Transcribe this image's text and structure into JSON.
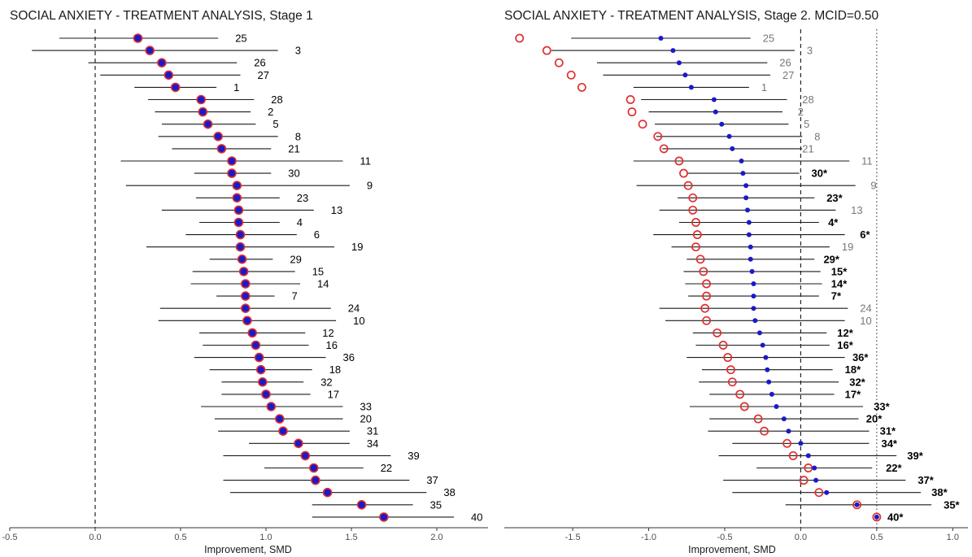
{
  "chart_data": [
    {
      "type": "forest",
      "title": "SOCIAL ANXIETY - TREATMENT ANALYSIS, Stage 1",
      "xlabel": "Improvement, SMD",
      "xlim": [
        -0.5,
        2.3
      ],
      "xticks": [
        "-0.5",
        "0.0",
        "0.5",
        "1.0",
        "1.5",
        "2.0"
      ],
      "reference_line": 0.0,
      "studies": [
        {
          "label": "25",
          "est": 0.25,
          "lo": -0.21,
          "hi": 0.72,
          "label_x": 0.82
        },
        {
          "label": "3",
          "est": 0.32,
          "lo": -0.37,
          "hi": 1.07,
          "label_x": 1.17
        },
        {
          "label": "26",
          "est": 0.39,
          "lo": -0.04,
          "hi": 0.83,
          "label_x": 0.93
        },
        {
          "label": "27",
          "est": 0.43,
          "lo": 0.03,
          "hi": 0.85,
          "label_x": 0.95
        },
        {
          "label": "1",
          "est": 0.47,
          "lo": 0.23,
          "hi": 0.71,
          "label_x": 0.81
        },
        {
          "label": "28",
          "est": 0.62,
          "lo": 0.31,
          "hi": 0.93,
          "label_x": 1.03
        },
        {
          "label": "2",
          "est": 0.63,
          "lo": 0.35,
          "hi": 0.91,
          "label_x": 1.01
        },
        {
          "label": "5",
          "est": 0.66,
          "lo": 0.39,
          "hi": 0.94,
          "label_x": 1.04
        },
        {
          "label": "8",
          "est": 0.72,
          "lo": 0.37,
          "hi": 1.07,
          "label_x": 1.17
        },
        {
          "label": "21",
          "est": 0.74,
          "lo": 0.45,
          "hi": 1.03,
          "label_x": 1.13
        },
        {
          "label": "11",
          "est": 0.8,
          "lo": 0.15,
          "hi": 1.45,
          "label_x": 1.55
        },
        {
          "label": "30",
          "est": 0.8,
          "lo": 0.58,
          "hi": 1.03,
          "label_x": 1.13
        },
        {
          "label": "9",
          "est": 0.83,
          "lo": 0.18,
          "hi": 1.49,
          "label_x": 1.59
        },
        {
          "label": "23",
          "est": 0.83,
          "lo": 0.59,
          "hi": 1.08,
          "label_x": 1.18
        },
        {
          "label": "13",
          "est": 0.84,
          "lo": 0.39,
          "hi": 1.28,
          "label_x": 1.38
        },
        {
          "label": "4",
          "est": 0.84,
          "lo": 0.61,
          "hi": 1.08,
          "label_x": 1.18
        },
        {
          "label": "6",
          "est": 0.85,
          "lo": 0.53,
          "hi": 1.18,
          "label_x": 1.28
        },
        {
          "label": "19",
          "est": 0.85,
          "lo": 0.3,
          "hi": 1.4,
          "label_x": 1.5
        },
        {
          "label": "29",
          "est": 0.86,
          "lo": 0.67,
          "hi": 1.04,
          "label_x": 1.14
        },
        {
          "label": "15",
          "est": 0.87,
          "lo": 0.57,
          "hi": 1.17,
          "label_x": 1.27
        },
        {
          "label": "14",
          "est": 0.88,
          "lo": 0.56,
          "hi": 1.2,
          "label_x": 1.3
        },
        {
          "label": "7",
          "est": 0.88,
          "lo": 0.71,
          "hi": 1.05,
          "label_x": 1.15
        },
        {
          "label": "24",
          "est": 0.88,
          "lo": 0.38,
          "hi": 1.38,
          "label_x": 1.48
        },
        {
          "label": "10",
          "est": 0.89,
          "lo": 0.37,
          "hi": 1.41,
          "label_x": 1.51
        },
        {
          "label": "12",
          "est": 0.92,
          "lo": 0.61,
          "hi": 1.23,
          "label_x": 1.33
        },
        {
          "label": "16",
          "est": 0.94,
          "lo": 0.63,
          "hi": 1.25,
          "label_x": 1.35
        },
        {
          "label": "36",
          "est": 0.96,
          "lo": 0.58,
          "hi": 1.35,
          "label_x": 1.45
        },
        {
          "label": "18",
          "est": 0.97,
          "lo": 0.67,
          "hi": 1.27,
          "label_x": 1.37
        },
        {
          "label": "32",
          "est": 0.98,
          "lo": 0.74,
          "hi": 1.22,
          "label_x": 1.32
        },
        {
          "label": "17",
          "est": 1.0,
          "lo": 0.74,
          "hi": 1.26,
          "label_x": 1.36
        },
        {
          "label": "33",
          "est": 1.03,
          "lo": 0.62,
          "hi": 1.45,
          "label_x": 1.55
        },
        {
          "label": "20",
          "est": 1.08,
          "lo": 0.7,
          "hi": 1.45,
          "label_x": 1.55
        },
        {
          "label": "31",
          "est": 1.1,
          "lo": 0.72,
          "hi": 1.49,
          "label_x": 1.59
        },
        {
          "label": "34",
          "est": 1.19,
          "lo": 0.9,
          "hi": 1.49,
          "label_x": 1.59
        },
        {
          "label": "39",
          "est": 1.23,
          "lo": 0.75,
          "hi": 1.73,
          "label_x": 1.83
        },
        {
          "label": "22",
          "est": 1.28,
          "lo": 0.99,
          "hi": 1.57,
          "label_x": 1.67
        },
        {
          "label": "37",
          "est": 1.29,
          "lo": 0.75,
          "hi": 1.84,
          "label_x": 1.94
        },
        {
          "label": "38",
          "est": 1.36,
          "lo": 0.79,
          "hi": 1.94,
          "label_x": 2.04
        },
        {
          "label": "35",
          "est": 1.56,
          "lo": 1.27,
          "hi": 1.86,
          "label_x": 1.96
        },
        {
          "label": "40",
          "est": 1.69,
          "lo": 1.27,
          "hi": 2.1,
          "label_x": 2.2
        }
      ]
    },
    {
      "type": "forest",
      "title": "SOCIAL ANXIETY - TREATMENT ANALYSIS, Stage 2. MCID=0.50",
      "xlabel": "Improvement, SMD",
      "xlim": [
        -1.95,
        1.1
      ],
      "xticks": [
        "-1.5",
        "-1.0",
        "-0.5",
        "0.0",
        "0.5",
        "1.0"
      ],
      "reference_line": 0.0,
      "mcid_line": 0.5,
      "studies": [
        {
          "label": "25",
          "est": -0.92,
          "lo": -1.51,
          "hi": -0.33,
          "naive": -1.85,
          "label_x": -0.25,
          "significant": false
        },
        {
          "label": "3",
          "est": -0.84,
          "lo": -1.64,
          "hi": -0.04,
          "naive": -1.67,
          "label_x": 0.04,
          "significant": false
        },
        {
          "label": "26",
          "est": -0.8,
          "lo": -1.34,
          "hi": -0.22,
          "naive": -1.59,
          "label_x": -0.14,
          "significant": false
        },
        {
          "label": "27",
          "est": -0.76,
          "lo": -1.3,
          "hi": -0.2,
          "naive": -1.51,
          "label_x": -0.12,
          "significant": false
        },
        {
          "label": "1",
          "est": -0.72,
          "lo": -1.1,
          "hi": -0.34,
          "naive": -1.44,
          "label_x": -0.26,
          "significant": false
        },
        {
          "label": "28",
          "est": -0.57,
          "lo": -1.05,
          "hi": -0.09,
          "naive": -1.12,
          "label_x": 0.01,
          "significant": false
        },
        {
          "label": "2",
          "est": -0.56,
          "lo": -1.0,
          "hi": -0.12,
          "naive": -1.11,
          "label_x": -0.02,
          "significant": false
        },
        {
          "label": "5",
          "est": -0.52,
          "lo": -0.96,
          "hi": -0.08,
          "naive": -1.04,
          "label_x": 0.02,
          "significant": false
        },
        {
          "label": "8",
          "est": -0.47,
          "lo": -0.95,
          "hi": 0.01,
          "naive": -0.94,
          "label_x": 0.09,
          "significant": false
        },
        {
          "label": "21",
          "est": -0.45,
          "lo": -0.91,
          "hi": 0.01,
          "naive": -0.9,
          "label_x": 0.01,
          "significant": false
        },
        {
          "label": "11",
          "est": -0.39,
          "lo": -1.1,
          "hi": 0.32,
          "naive": -0.8,
          "label_x": 0.4,
          "significant": false
        },
        {
          "label": "30*",
          "est": -0.38,
          "lo": -0.75,
          "hi": -0.01,
          "naive": -0.77,
          "label_x": 0.07,
          "significant": true
        },
        {
          "label": "9",
          "est": -0.36,
          "lo": -1.08,
          "hi": 0.36,
          "naive": -0.74,
          "label_x": 0.46,
          "significant": false
        },
        {
          "label": "23*",
          "est": -0.36,
          "lo": -0.81,
          "hi": 0.09,
          "naive": -0.71,
          "label_x": 0.17,
          "significant": true
        },
        {
          "label": "13",
          "est": -0.35,
          "lo": -0.93,
          "hi": 0.23,
          "naive": -0.71,
          "label_x": 0.33,
          "significant": false
        },
        {
          "label": "4*",
          "est": -0.34,
          "lo": -0.8,
          "hi": 0.12,
          "naive": -0.69,
          "label_x": 0.18,
          "significant": true
        },
        {
          "label": "6*",
          "est": -0.34,
          "lo": -0.97,
          "hi": 0.29,
          "naive": -0.68,
          "label_x": 0.39,
          "significant": true
        },
        {
          "label": "19",
          "est": -0.33,
          "lo": -0.85,
          "hi": 0.19,
          "naive": -0.69,
          "label_x": 0.27,
          "significant": false
        },
        {
          "label": "29*",
          "est": -0.33,
          "lo": -0.75,
          "hi": 0.09,
          "naive": -0.66,
          "label_x": 0.15,
          "significant": true
        },
        {
          "label": "15*",
          "est": -0.32,
          "lo": -0.77,
          "hi": 0.13,
          "naive": -0.64,
          "label_x": 0.2,
          "significant": true
        },
        {
          "label": "14*",
          "est": -0.31,
          "lo": -0.76,
          "hi": 0.14,
          "naive": -0.62,
          "label_x": 0.2,
          "significant": true
        },
        {
          "label": "7*",
          "est": -0.31,
          "lo": -0.74,
          "hi": 0.12,
          "naive": -0.62,
          "label_x": 0.2,
          "significant": true
        },
        {
          "label": "24",
          "est": -0.31,
          "lo": -0.93,
          "hi": 0.31,
          "naive": -0.63,
          "label_x": 0.39,
          "significant": false
        },
        {
          "label": "10",
          "est": -0.3,
          "lo": -0.89,
          "hi": 0.29,
          "naive": -0.62,
          "label_x": 0.39,
          "significant": false
        },
        {
          "label": "12*",
          "est": -0.27,
          "lo": -0.71,
          "hi": 0.17,
          "naive": -0.55,
          "label_x": 0.24,
          "significant": true
        },
        {
          "label": "16*",
          "est": -0.25,
          "lo": -0.69,
          "hi": 0.19,
          "naive": -0.51,
          "label_x": 0.24,
          "significant": true
        },
        {
          "label": "36*",
          "est": -0.23,
          "lo": -0.75,
          "hi": 0.29,
          "naive": -0.48,
          "label_x": 0.34,
          "significant": true
        },
        {
          "label": "18*",
          "est": -0.22,
          "lo": -0.65,
          "hi": 0.21,
          "naive": -0.46,
          "label_x": 0.29,
          "significant": true
        },
        {
          "label": "32*",
          "est": -0.21,
          "lo": -0.67,
          "hi": 0.25,
          "naive": -0.45,
          "label_x": 0.32,
          "significant": true
        },
        {
          "label": "17*",
          "est": -0.19,
          "lo": -0.6,
          "hi": 0.22,
          "naive": -0.4,
          "label_x": 0.29,
          "significant": true
        },
        {
          "label": "33*",
          "est": -0.16,
          "lo": -0.73,
          "hi": 0.41,
          "naive": -0.37,
          "label_x": 0.48,
          "significant": true
        },
        {
          "label": "20*",
          "est": -0.11,
          "lo": -0.6,
          "hi": 0.38,
          "naive": -0.28,
          "label_x": 0.43,
          "significant": true
        },
        {
          "label": "31*",
          "est": -0.08,
          "lo": -0.61,
          "hi": 0.45,
          "naive": -0.24,
          "label_x": 0.52,
          "significant": true
        },
        {
          "label": "34*",
          "est": 0.0,
          "lo": -0.45,
          "hi": 0.45,
          "naive": -0.09,
          "label_x": 0.53,
          "significant": true
        },
        {
          "label": "39*",
          "est": 0.05,
          "lo": -0.54,
          "hi": 0.63,
          "naive": -0.05,
          "label_x": 0.7,
          "significant": true
        },
        {
          "label": "22*",
          "est": 0.09,
          "lo": -0.29,
          "hi": 0.47,
          "naive": 0.05,
          "label_x": 0.56,
          "significant": true
        },
        {
          "label": "37*",
          "est": 0.1,
          "lo": -0.51,
          "hi": 0.69,
          "naive": 0.02,
          "label_x": 0.77,
          "significant": true
        },
        {
          "label": "38*",
          "est": 0.17,
          "lo": -0.45,
          "hi": 0.79,
          "naive": 0.12,
          "label_x": 0.86,
          "significant": true
        },
        {
          "label": "35*",
          "est": 0.37,
          "lo": -0.1,
          "hi": 0.86,
          "naive": 0.37,
          "label_x": 0.94,
          "significant": true
        },
        {
          "label": "40*",
          "est": 0.5,
          "lo": 0.5,
          "hi": 0.5,
          "naive": 0.5,
          "label_x": 0.57,
          "significant": true
        }
      ]
    }
  ],
  "colors": {
    "estimate_fill": "#1a1ac8",
    "naive_ring": "#e03030",
    "ci_line": "#1a1a1a",
    "label_significant": "#000000",
    "label_nonsignificant": "#777777",
    "axis": "#333333"
  }
}
